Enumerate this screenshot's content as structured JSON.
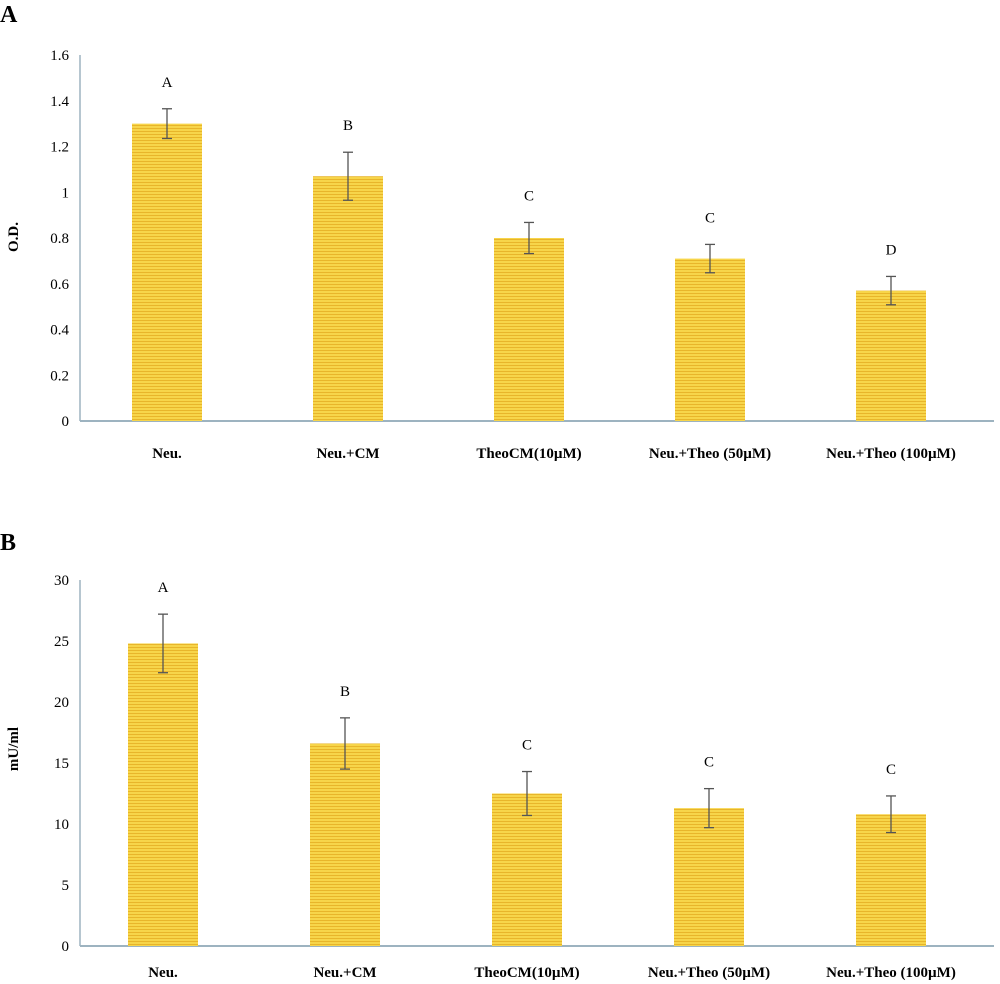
{
  "colors": {
    "bar_fill": "#F7D54A",
    "bar_stripe": "#E8B52A",
    "axis": "#9DB3C0",
    "error_bar": "#555555"
  },
  "chart_data": [
    {
      "panel": "A",
      "type": "bar",
      "ylabel": "O.D.",
      "categories": [
        "Neu.",
        "Neu.+CM",
        "TheoCM(10µM)",
        "Neu.+Theo (50µM)",
        "Neu.+Theo (100µM)"
      ],
      "values": [
        1.3,
        1.07,
        0.8,
        0.71,
        0.57
      ],
      "errors": [
        0.065,
        0.105,
        0.068,
        0.062,
        0.062
      ],
      "significance": [
        "A",
        "B",
        "C",
        "C",
        "D"
      ],
      "ylim": [
        0,
        1.6
      ],
      "yticks": [
        0,
        0.2,
        0.4,
        0.6,
        0.8,
        1,
        1.2,
        1.4,
        1.6
      ],
      "ytick_labels": [
        "0",
        "0.2",
        "0.4",
        "0.6",
        "0.8",
        "1",
        "1.2",
        "1.4",
        "1.6"
      ],
      "grid": false,
      "legend": "none"
    },
    {
      "panel": "B",
      "type": "bar",
      "ylabel": "mU/ml",
      "categories": [
        "Neu.",
        "Neu.+CM",
        "TheoCM(10µM)",
        "Neu.+Theo (50µM)",
        "Neu.+Theo (100µM)"
      ],
      "values": [
        24.8,
        16.6,
        12.5,
        11.3,
        10.8
      ],
      "errors": [
        2.4,
        2.1,
        1.8,
        1.6,
        1.5
      ],
      "significance": [
        "A",
        "B",
        "C",
        "C",
        "C"
      ],
      "ylim": [
        0,
        30
      ],
      "yticks": [
        0,
        5,
        10,
        15,
        20,
        25,
        30
      ],
      "ytick_labels": [
        "0",
        "5",
        "10",
        "15",
        "20",
        "25",
        "30"
      ],
      "grid": false,
      "legend": "none"
    }
  ]
}
